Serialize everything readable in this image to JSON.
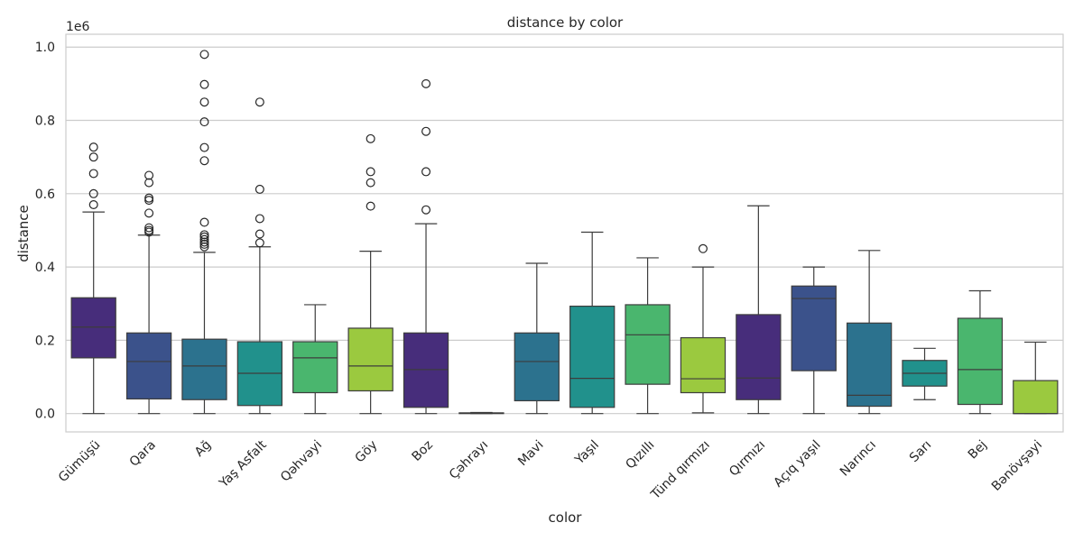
{
  "chart_data": {
    "type": "box",
    "title": "distance by color",
    "xlabel": "color",
    "ylabel": "distance",
    "y_scale_label": "1e6",
    "y_ticks": [
      "0.0",
      "0.2",
      "0.4",
      "0.6",
      "0.8",
      "1.0"
    ],
    "y_tick_values": [
      0,
      200000,
      400000,
      600000,
      800000,
      1000000
    ],
    "ylim": [
      -50000,
      1035000
    ],
    "grid": "horizontal",
    "categories": [
      "Gümüşü",
      "Qara",
      "Ağ",
      "Yaş Asfalt",
      "Qəhvəyi",
      "Göy",
      "Boz",
      "Çəhrayı",
      "Mavi",
      "Yaşıl",
      "Qızıllı",
      "Tünd qırmızı",
      "Qırmızı",
      "Açıq yaşıl",
      "Narıncı",
      "Sarı",
      "Bej",
      "Bənövşəyi"
    ],
    "colors": [
      "#472d7b",
      "#3b528b",
      "#2c728e",
      "#21918c",
      "#4ab66e",
      "#9bc93f",
      "#472d7b",
      "#3b528b",
      "#2c728e",
      "#21918c",
      "#4ab66e",
      "#9bc93f",
      "#472d7b",
      "#3b528b",
      "#2c728e",
      "#21918c",
      "#4ab66e",
      "#9bc93f"
    ],
    "boxes": [
      {
        "whisker_low": 0,
        "q1": 152000,
        "median": 236000,
        "q3": 316000,
        "whisker_high": 550000,
        "outliers": [
          570000,
          600000,
          655000,
          700000,
          727000
        ]
      },
      {
        "whisker_low": 0,
        "q1": 40000,
        "median": 142000,
        "q3": 220000,
        "whisker_high": 487000,
        "outliers": [
          495000,
          500000,
          507000,
          547000,
          582000,
          588000,
          630000,
          650000
        ]
      },
      {
        "whisker_low": 0,
        "q1": 38000,
        "median": 130000,
        "q3": 203000,
        "whisker_high": 440000,
        "outliers": [
          455000,
          462000,
          468000,
          475000,
          482000,
          488000,
          522000,
          690000,
          726000,
          796000,
          850000,
          898000,
          980000
        ]
      },
      {
        "whisker_low": 0,
        "q1": 22000,
        "median": 110000,
        "q3": 196000,
        "whisker_high": 455000,
        "outliers": [
          466000,
          490000,
          532000,
          612000,
          850000
        ]
      },
      {
        "whisker_low": 0,
        "q1": 57000,
        "median": 152000,
        "q3": 196000,
        "whisker_high": 297000,
        "outliers": []
      },
      {
        "whisker_low": 0,
        "q1": 62000,
        "median": 130000,
        "q3": 233000,
        "whisker_high": 443000,
        "outliers": [
          566000,
          630000,
          660000,
          750000
        ]
      },
      {
        "whisker_low": 0,
        "q1": 17000,
        "median": 120000,
        "q3": 220000,
        "whisker_high": 518000,
        "outliers": [
          556000,
          660000,
          770000,
          900000
        ]
      },
      {
        "whisker_low": 0,
        "q1": 0,
        "median": 1000,
        "q3": 2000,
        "whisker_high": 3000,
        "outliers": []
      },
      {
        "whisker_low": 0,
        "q1": 35000,
        "median": 142000,
        "q3": 220000,
        "whisker_high": 410000,
        "outliers": []
      },
      {
        "whisker_low": 0,
        "q1": 17000,
        "median": 96000,
        "q3": 293000,
        "whisker_high": 495000,
        "outliers": []
      },
      {
        "whisker_low": 0,
        "q1": 80000,
        "median": 215000,
        "q3": 297000,
        "whisker_high": 425000,
        "outliers": []
      },
      {
        "whisker_low": 2000,
        "q1": 57000,
        "median": 95000,
        "q3": 207000,
        "whisker_high": 400000,
        "outliers": [
          450000
        ]
      },
      {
        "whisker_low": 0,
        "q1": 38000,
        "median": 97000,
        "q3": 270000,
        "whisker_high": 567000,
        "outliers": []
      },
      {
        "whisker_low": 0,
        "q1": 117000,
        "median": 314000,
        "q3": 348000,
        "whisker_high": 400000,
        "outliers": []
      },
      {
        "whisker_low": 0,
        "q1": 20000,
        "median": 50000,
        "q3": 247000,
        "whisker_high": 445000,
        "outliers": []
      },
      {
        "whisker_low": 38000,
        "q1": 75000,
        "median": 110000,
        "q3": 145000,
        "whisker_high": 178000,
        "outliers": []
      },
      {
        "whisker_low": 0,
        "q1": 25000,
        "median": 120000,
        "q3": 260000,
        "whisker_high": 335000,
        "outliers": []
      },
      {
        "whisker_low": 0,
        "q1": 0,
        "median": 0,
        "q3": 90000,
        "whisker_high": 195000,
        "outliers": []
      }
    ]
  }
}
